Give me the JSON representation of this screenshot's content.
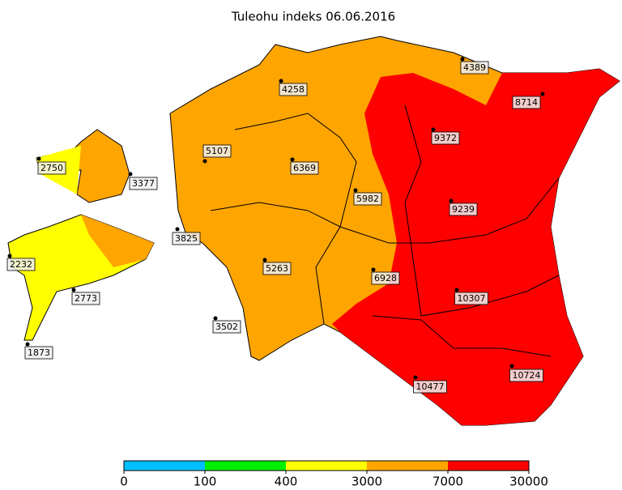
{
  "title": "Tuleohu indeks 06.06.2016",
  "stations": [
    2750,
    3377,
    4258,
    5107,
    6369,
    5982,
    9372,
    4389,
    8714,
    9239,
    3825,
    2232,
    5263,
    6928,
    2773,
    10307,
    3502,
    1873,
    10477,
    10724
  ],
  "colorbar": {
    "ticks": [
      0,
      100,
      400,
      3000,
      7000,
      30000
    ],
    "colors": [
      "#00bfff",
      "#00ee00",
      "#ffff00",
      "#ffa500",
      "#ff0000"
    ]
  }
}
